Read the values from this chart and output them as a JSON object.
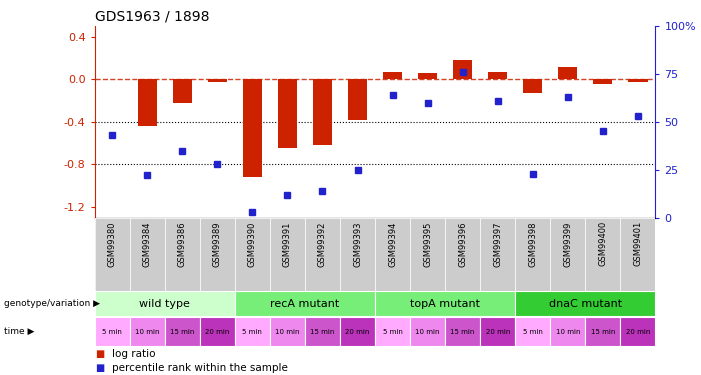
{
  "title": "GDS1963 / 1898",
  "samples": [
    "GSM99380",
    "GSM99384",
    "GSM99386",
    "GSM99389",
    "GSM99390",
    "GSM99391",
    "GSM99392",
    "GSM99393",
    "GSM99394",
    "GSM99395",
    "GSM99396",
    "GSM99397",
    "GSM99398",
    "GSM99399",
    "GSM99400",
    "GSM99401"
  ],
  "log_ratio": [
    0.0,
    -0.44,
    -0.22,
    -0.02,
    -0.92,
    -0.65,
    -0.62,
    -0.38,
    0.07,
    0.06,
    0.18,
    0.07,
    -0.13,
    0.12,
    -0.04,
    -0.02
  ],
  "percentile": [
    43,
    22,
    35,
    28,
    3,
    12,
    14,
    25,
    64,
    60,
    76,
    61,
    23,
    63,
    45,
    53
  ],
  "bar_color": "#cc2200",
  "dot_color": "#2222cc",
  "groups": [
    {
      "label": "wild type",
      "start": 0,
      "end": 4,
      "color": "#ccffcc"
    },
    {
      "label": "recA mutant",
      "start": 4,
      "end": 8,
      "color": "#77ee77"
    },
    {
      "label": "topA mutant",
      "start": 8,
      "end": 12,
      "color": "#77ee77"
    },
    {
      "label": "dnaC mutant",
      "start": 12,
      "end": 16,
      "color": "#33cc33"
    }
  ],
  "time_labels": [
    "5 min",
    "10 min",
    "15 min",
    "20 min",
    "5 min",
    "10 min",
    "15 min",
    "20 min",
    "5 min",
    "10 min",
    "15 min",
    "20 min",
    "5 min",
    "10 min",
    "15 min",
    "20 min"
  ],
  "time_colors": [
    "#ffaaff",
    "#ee88ee",
    "#cc55cc",
    "#bb33bb",
    "#ffaaff",
    "#ee88ee",
    "#cc55cc",
    "#bb33bb",
    "#ffaaff",
    "#ee88ee",
    "#cc55cc",
    "#bb33bb",
    "#ffaaff",
    "#ee88ee",
    "#cc55cc",
    "#bb33bb"
  ],
  "ylim_left": [
    -1.3,
    0.5
  ],
  "ylim_right": [
    0,
    100
  ],
  "yticks_left": [
    -1.2,
    -0.8,
    -0.4,
    0.0,
    0.4
  ],
  "yticks_right": [
    0,
    25,
    50,
    75,
    100
  ],
  "dotted_lines": [
    -0.4,
    -0.8
  ],
  "background_color": "#ffffff",
  "gsm_bg": "#cccccc"
}
